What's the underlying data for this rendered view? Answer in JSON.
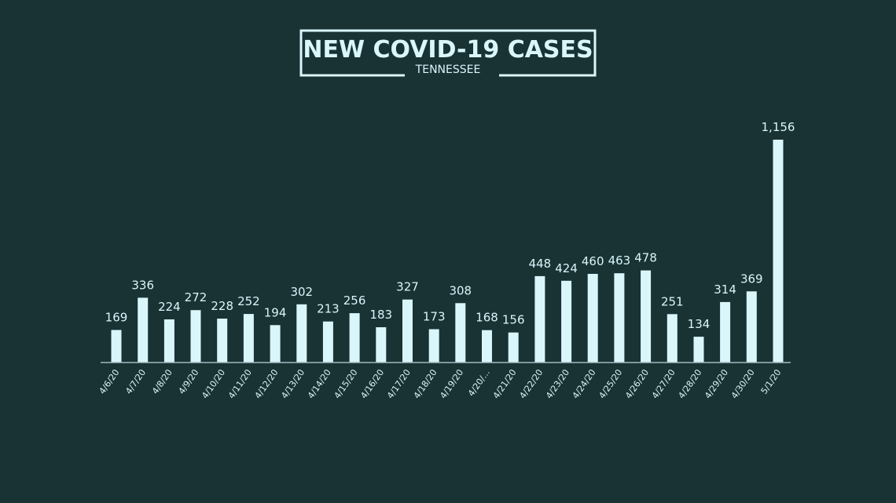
{
  "chart_data": {
    "type": "bar",
    "title": "NEW COVID-19 CASES",
    "subtitle": "TENNESSEE",
    "xlabel": "",
    "ylabel": "",
    "ylim": [
      0,
      1200
    ],
    "grid": false,
    "legend": "none",
    "colors": {
      "background": "#193234",
      "bar": "#d9f6fb",
      "text": "#d9f6fb",
      "axis": "#9fb9bc"
    },
    "categories": [
      "4/6/20",
      "4/7/20",
      "4/8/20",
      "4/9/20",
      "4/10/20",
      "4/11/20",
      "4/12/20",
      "4/13/20",
      "4/14/20",
      "4/15/20",
      "4/16/20",
      "4/17/20",
      "4/18/20",
      "4/19/20",
      "4/20/...",
      "4/21/20",
      "4/22/20",
      "4/23/20",
      "4/24/20",
      "4/25/20",
      "4/26/20",
      "4/27/20",
      "4/28/20",
      "4/29/20",
      "4/30/20",
      "5/1/20"
    ],
    "values": [
      169,
      336,
      224,
      272,
      228,
      252,
      194,
      302,
      213,
      256,
      183,
      327,
      173,
      308,
      168,
      156,
      448,
      424,
      460,
      463,
      478,
      251,
      134,
      314,
      369,
      1156
    ],
    "value_labels": [
      "169",
      "336",
      "224",
      "272",
      "228",
      "252",
      "194",
      "302",
      "213",
      "256",
      "183",
      "327",
      "173",
      "308",
      "168",
      "156",
      "448",
      "424",
      "460",
      "463",
      "478",
      "251",
      "134",
      "314",
      "369",
      "1,156"
    ]
  }
}
